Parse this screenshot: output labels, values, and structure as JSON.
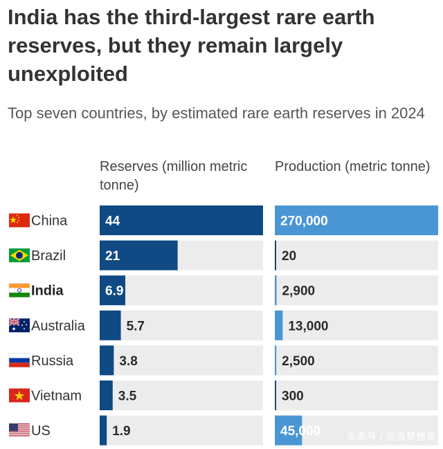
{
  "title": "India has the third-largest rare earth reserves, but they remain largely unexploited",
  "subtitle": "Top seven countries, by estimated rare earth reserves in 2024",
  "watermark": "头条号 / 沧海梦想家",
  "colors": {
    "reserves_bar": "#0f4a84",
    "production_bar": "#4a96d4",
    "track": "#ececec",
    "axis_line": "#1b3f6b"
  },
  "chart_data": {
    "type": "bar",
    "title": "India has the third-largest rare earth reserves, but they remain largely unexploited",
    "subtitle": "Top seven countries, by estimated rare earth reserves in 2024",
    "categories": [
      "China",
      "Brazil",
      "India",
      "Australia",
      "Russia",
      "Vietnam",
      "US"
    ],
    "highlight": "India",
    "flag_icons": [
      "china-flag-icon",
      "brazil-flag-icon",
      "india-flag-icon",
      "australia-flag-icon",
      "russia-flag-icon",
      "vietnam-flag-icon",
      "us-flag-icon"
    ],
    "series": [
      {
        "name": "Reserves (million metric tonne)",
        "values": [
          44,
          21,
          6.9,
          5.7,
          3.8,
          3.5,
          1.9
        ],
        "labels": [
          "44",
          "21",
          "6.9",
          "5.7",
          "3.8",
          "3.5",
          "1.9"
        ],
        "xlim": [
          0,
          44
        ]
      },
      {
        "name": "Production (metric tonne)",
        "values": [
          270000,
          20,
          2900,
          13000,
          2500,
          300,
          45000
        ],
        "labels": [
          "270,000",
          "20",
          "2,900",
          "13,000",
          "2,500",
          "300",
          "45,000"
        ],
        "xlim": [
          0,
          270000
        ]
      }
    ],
    "legend": "none",
    "grid": false
  }
}
